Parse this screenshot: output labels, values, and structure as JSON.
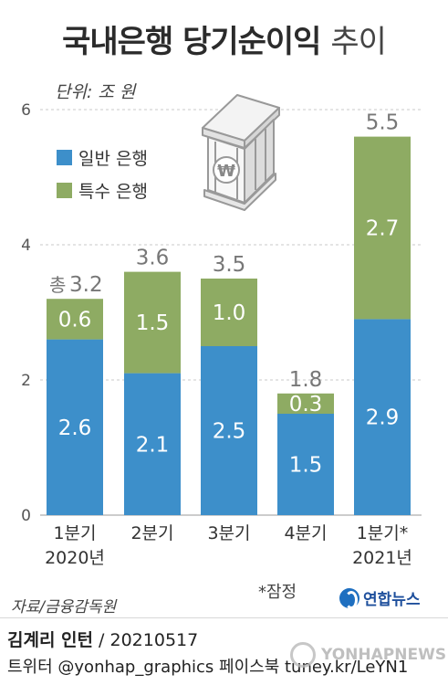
{
  "title_main": "국내은행 당기순이익",
  "title_suffix": "추이",
  "unit": "단위: 조 원",
  "total_prefix": "총",
  "source": "자료/금융감독원",
  "note": "*잠정",
  "logo_text": "연합뉴스",
  "credit_author": "김계리 인턴",
  "credit_date": " / 20210517",
  "credit_line2": "트위터 @yonhap_graphics  페이스북 tuney.kr/LeYN1",
  "watermark": "YONHAPNEWS",
  "icon": "bank-building-won-icon",
  "colors": {
    "general": "#3d8fca",
    "special": "#8eab63",
    "grid": "#c8c8c8",
    "total": "#777777"
  },
  "chart_data": {
    "type": "bar",
    "stacked": true,
    "categories": [
      "1분기\n2020년",
      "2분기",
      "3분기",
      "4분기",
      "1분기*\n2021년"
    ],
    "series": [
      {
        "name": "일반 은행",
        "values": [
          2.6,
          2.1,
          2.5,
          1.5,
          2.9
        ]
      },
      {
        "name": "특수 은행",
        "values": [
          0.6,
          1.5,
          1.0,
          0.3,
          2.7
        ]
      }
    ],
    "totals": [
      3.2,
      3.6,
      3.5,
      1.8,
      5.5
    ],
    "value_labels": {
      "general": [
        "2.6",
        "2.1",
        "2.5",
        "1.5",
        "2.9"
      ],
      "special": [
        "0.6",
        "1.5",
        "1.0",
        "0.3",
        "2.7"
      ],
      "totals": [
        "3.2",
        "3.6",
        "3.5",
        "1.8",
        "5.5"
      ]
    },
    "yticks": [
      0,
      2,
      4,
      6
    ],
    "ylim": [
      0,
      6
    ],
    "grid": true,
    "legend": "top-left",
    "xlabel": "",
    "ylabel": ""
  }
}
